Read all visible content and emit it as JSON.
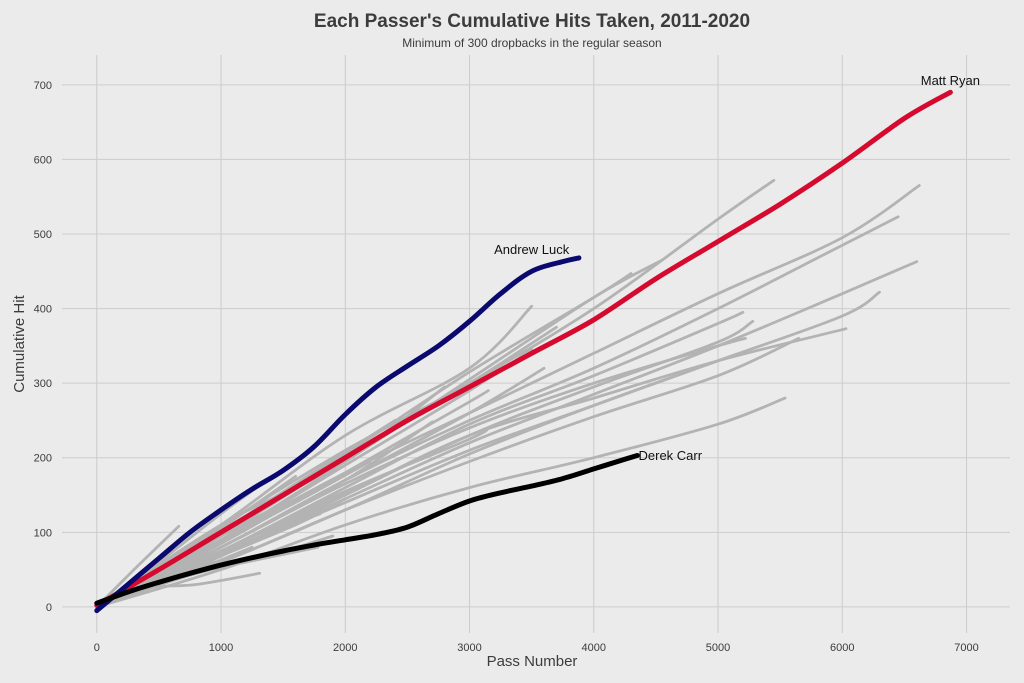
{
  "chart_data": {
    "type": "line",
    "title": "Each Passer's Cumulative Hits Taken, 2011-2020",
    "subtitle": "Minimum of 300 dropbacks in the regular season",
    "xlabel": "Pass Number",
    "ylabel": "Cumulative Hit",
    "xlim": [
      -280,
      7350
    ],
    "ylim": [
      -35,
      740
    ],
    "xticks": [
      0,
      1000,
      2000,
      3000,
      4000,
      5000,
      6000,
      7000
    ],
    "yticks": [
      0,
      100,
      200,
      300,
      400,
      500,
      600,
      700
    ],
    "grid": true,
    "legend": "none",
    "background_color": "#ebebeb",
    "grid_color": "#cccccc",
    "background_series_color": "#b3b3b3",
    "highlighted_series": [
      {
        "label": "Matt Ryan",
        "color": "#d50a2e",
        "label_at": [
          6870,
          700
        ],
        "x": [
          0,
          500,
          1000,
          1500,
          2000,
          2500,
          3000,
          3500,
          4000,
          4500,
          5000,
          5500,
          6000,
          6500,
          6870
        ],
        "y": [
          2,
          50,
          100,
          150,
          200,
          250,
          295,
          340,
          385,
          440,
          490,
          540,
          595,
          655,
          690
        ]
      },
      {
        "label": "Andrew Luck",
        "color": "#0a0a6e",
        "label_at": [
          3500,
          473
        ],
        "x": [
          0,
          250,
          500,
          750,
          1000,
          1250,
          1500,
          1750,
          2000,
          2250,
          2500,
          2750,
          3000,
          3250,
          3500,
          3750,
          3880
        ],
        "y": [
          -5,
          30,
          65,
          100,
          130,
          158,
          183,
          215,
          258,
          295,
          323,
          350,
          383,
          420,
          450,
          463,
          468
        ]
      },
      {
        "label": "Derek Carr",
        "color": "#000000",
        "label_at": [
          4360,
          197
        ],
        "x": [
          0,
          250,
          500,
          750,
          1000,
          1250,
          1500,
          1750,
          2000,
          2250,
          2500,
          2750,
          3000,
          3250,
          3500,
          3750,
          4000,
          4250,
          4350
        ],
        "y": [
          5,
          20,
          33,
          45,
          56,
          66,
          75,
          83,
          90,
          97,
          107,
          125,
          142,
          153,
          162,
          172,
          185,
          198,
          203
        ]
      }
    ],
    "background_series": [
      {
        "x": [
          0,
          1000,
          2000,
          3000,
          4000,
          5000,
          5450
        ],
        "y": [
          0,
          108,
          210,
          300,
          400,
          520,
          572
        ]
      },
      {
        "x": [
          0,
          1000,
          2000,
          3000,
          4000,
          5000,
          6000,
          6620
        ],
        "y": [
          0,
          90,
          180,
          260,
          340,
          420,
          495,
          565
        ]
      },
      {
        "x": [
          0,
          1000,
          2000,
          3000,
          4000,
          5000,
          6000,
          6450
        ],
        "y": [
          0,
          80,
          170,
          250,
          320,
          400,
          485,
          523
        ]
      },
      {
        "x": [
          0,
          1000,
          2000,
          3000,
          4000,
          5000,
          6000,
          6600
        ],
        "y": [
          0,
          70,
          145,
          220,
          285,
          350,
          420,
          463
        ]
      },
      {
        "x": [
          0,
          1000,
          2000,
          3000,
          4000,
          5000,
          6000,
          6300
        ],
        "y": [
          0,
          70,
          140,
          210,
          270,
          330,
          390,
          422
        ]
      },
      {
        "x": [
          0,
          1000,
          2000,
          3000,
          4000,
          5000,
          6030
        ],
        "y": [
          0,
          68,
          150,
          230,
          280,
          330,
          373
        ]
      },
      {
        "x": [
          0,
          1000,
          2000,
          3000,
          4000,
          5000,
          5650
        ],
        "y": [
          0,
          60,
          130,
          195,
          255,
          310,
          360
        ]
      },
      {
        "x": [
          0,
          1000,
          2000,
          3000,
          4000,
          5000,
          5540
        ],
        "y": [
          0,
          50,
          110,
          160,
          200,
          245,
          280
        ]
      },
      {
        "x": [
          0,
          1000,
          2000,
          3000,
          4000,
          5000,
          5280
        ],
        "y": [
          0,
          70,
          150,
          230,
          295,
          355,
          383
        ]
      },
      {
        "x": [
          0,
          1000,
          2000,
          3000,
          4000,
          5000,
          5220
        ],
        "y": [
          0,
          80,
          165,
          240,
          300,
          350,
          360
        ]
      },
      {
        "x": [
          0,
          1000,
          2000,
          3000,
          4000,
          5000,
          5200
        ],
        "y": [
          0,
          60,
          130,
          205,
          270,
          330,
          340
        ]
      },
      {
        "x": [
          0,
          1000,
          2000,
          3000,
          4000,
          5000,
          5200
        ],
        "y": [
          0,
          75,
          160,
          245,
          310,
          380,
          395
        ]
      },
      {
        "x": [
          0,
          1000,
          2000,
          3000,
          3500
        ],
        "y": [
          0,
          110,
          230,
          320,
          403
        ]
      },
      {
        "x": [
          0,
          1000,
          2000,
          3000,
          3700
        ],
        "y": [
          0,
          95,
          200,
          300,
          375
        ]
      },
      {
        "x": [
          0,
          1000,
          2000,
          3000,
          4000,
          4550
        ],
        "y": [
          0,
          90,
          195,
          305,
          415,
          465
        ]
      },
      {
        "x": [
          0,
          1000,
          2000,
          3000,
          4000,
          4300
        ],
        "y": [
          0,
          100,
          205,
          315,
          415,
          447
        ]
      },
      {
        "x": [
          0,
          1000,
          2000,
          2700
        ],
        "y": [
          0,
          80,
          170,
          248
        ]
      },
      {
        "x": [
          0,
          1000,
          2000,
          2800
        ],
        "y": [
          0,
          110,
          195,
          295
        ]
      },
      {
        "x": [
          0,
          1000,
          2000,
          3000,
          3150
        ],
        "y": [
          0,
          85,
          180,
          275,
          290
        ]
      },
      {
        "x": [
          0,
          1000,
          2000,
          3000,
          3150
        ],
        "y": [
          0,
          75,
          155,
          225,
          240
        ]
      },
      {
        "x": [
          0,
          1000,
          2000,
          3000,
          3500
        ],
        "y": [
          0,
          90,
          190,
          290,
          345
        ]
      },
      {
        "x": [
          0,
          1000,
          2000,
          3000,
          3600
        ],
        "y": [
          0,
          80,
          170,
          260,
          320
        ]
      },
      {
        "x": [
          0,
          800,
          1600,
          2400
        ],
        "y": [
          0,
          80,
          165,
          250
        ]
      },
      {
        "x": [
          0,
          800,
          1600,
          2200
        ],
        "y": [
          0,
          70,
          140,
          195
        ]
      },
      {
        "x": [
          0,
          800,
          1600,
          2100
        ],
        "y": [
          0,
          60,
          120,
          160
        ]
      },
      {
        "x": [
          0,
          800,
          1600,
          2000
        ],
        "y": [
          0,
          55,
          110,
          145
        ]
      },
      {
        "x": [
          0,
          700,
          1400,
          1800
        ],
        "y": [
          0,
          50,
          100,
          125
        ]
      },
      {
        "x": [
          0,
          700,
          1400,
          1900
        ],
        "y": [
          0,
          40,
          70,
          95
        ]
      },
      {
        "x": [
          0,
          600,
          1200,
          1780
        ],
        "y": [
          0,
          40,
          60,
          80
        ]
      },
      {
        "x": [
          0,
          500,
          1000,
          1600
        ],
        "y": [
          0,
          45,
          105,
          175
        ]
      },
      {
        "x": [
          0,
          500,
          1000,
          1500
        ],
        "y": [
          0,
          60,
          125,
          185
        ]
      },
      {
        "x": [
          0,
          500,
          1000,
          1400
        ],
        "y": [
          0,
          48,
          95,
          130
        ]
      },
      {
        "x": [
          0,
          400,
          800,
          1310
        ],
        "y": [
          0,
          25,
          30,
          45
        ]
      },
      {
        "x": [
          0,
          400,
          800,
          1250
        ],
        "y": [
          0,
          30,
          50,
          80
        ]
      },
      {
        "x": [
          0,
          350,
          700,
          1000
        ],
        "y": [
          0,
          40,
          75,
          105
        ]
      },
      {
        "x": [
          0,
          330,
          660
        ],
        "y": [
          0,
          55,
          108
        ]
      },
      {
        "x": [
          0,
          300,
          600,
          900
        ],
        "y": [
          0,
          30,
          52,
          70
        ]
      },
      {
        "x": [
          0,
          300,
          600,
          950
        ],
        "y": [
          0,
          20,
          40,
          60
        ]
      }
    ]
  }
}
